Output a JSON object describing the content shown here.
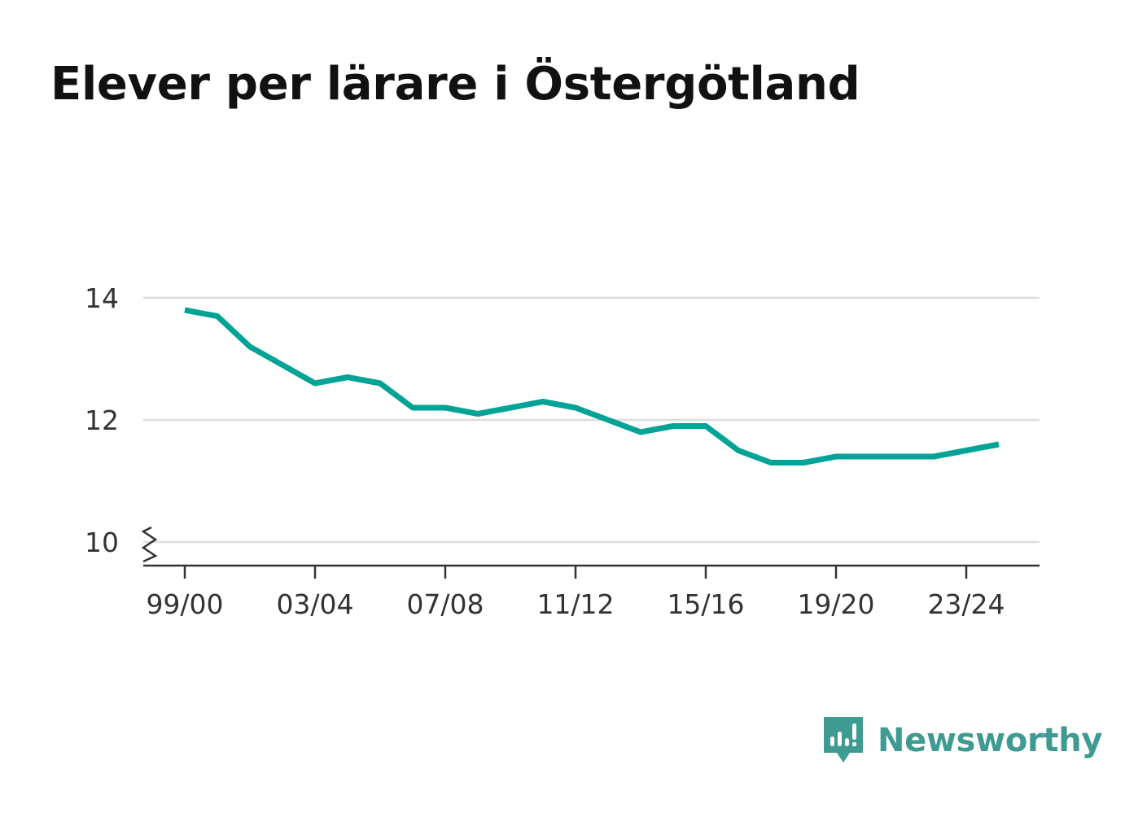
{
  "title": "Elever per lärare i Östergötland",
  "brand": {
    "name": "Newsworthy",
    "logo_icon": "newsworthy-logo-icon",
    "color": "#3f9a92"
  },
  "chart_data": {
    "type": "line",
    "title": "Elever per lärare i Östergötland",
    "xlabel": "",
    "ylabel": "",
    "x": [
      "99/00",
      "00/01",
      "01/02",
      "02/03",
      "03/04",
      "04/05",
      "05/06",
      "06/07",
      "07/08",
      "08/09",
      "09/10",
      "10/11",
      "11/12",
      "12/13",
      "13/14",
      "14/15",
      "15/16",
      "16/17",
      "17/18",
      "18/19",
      "19/20",
      "20/21",
      "21/22",
      "22/23",
      "23/24",
      "24/25"
    ],
    "x_tick_labels": [
      "99/00",
      "03/04",
      "07/08",
      "11/12",
      "15/16",
      "19/20",
      "23/24"
    ],
    "series": [
      {
        "values": [
          13.8,
          13.7,
          13.2,
          12.9,
          12.6,
          12.7,
          12.6,
          12.2,
          12.2,
          12.1,
          12.2,
          12.3,
          12.2,
          12.0,
          11.8,
          11.9,
          11.9,
          11.5,
          11.3,
          11.3,
          11.4,
          11.4,
          11.4,
          11.4,
          11.5,
          11.6
        ],
        "color": "#00a396"
      }
    ],
    "y_ticks": [
      10,
      12,
      14
    ],
    "ylim": [
      9.6,
      14
    ],
    "y_axis_break": true,
    "grid": true,
    "legend": "none"
  }
}
